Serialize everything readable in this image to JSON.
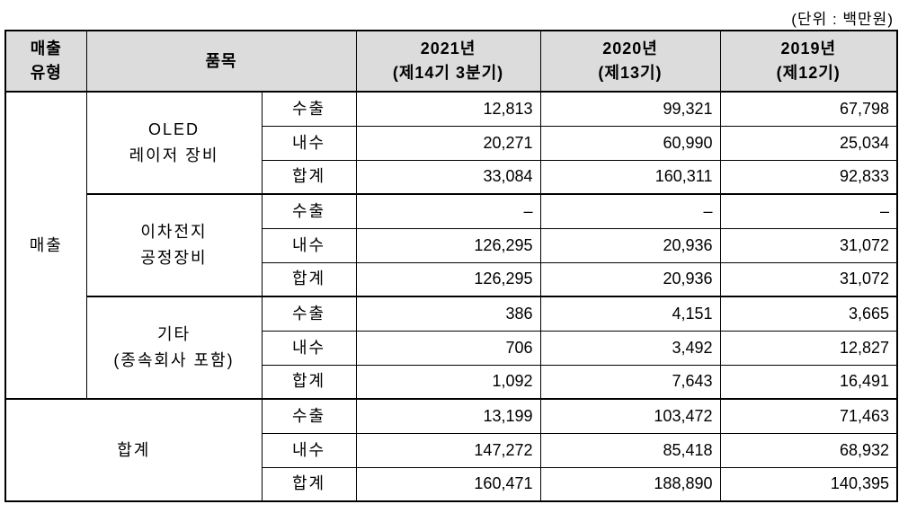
{
  "unit_label": "(단위 : 백만원)",
  "colors": {
    "header_bg": "#dcdcdc",
    "border": "#000000",
    "text": "#000000"
  },
  "table": {
    "headers": {
      "sales_type": "매출\n유형",
      "item": "품목",
      "y2021": "2021년\n(제14기 3분기)",
      "y2020": "2020년\n(제13기)",
      "y2019": "2019년\n(제12기)"
    },
    "sections": [
      {
        "type_label": "매출",
        "groups": [
          {
            "name": "OLED\n레이저 장비",
            "rows": [
              {
                "channel": "수출",
                "v2021": "12,813",
                "v2020": "99,321",
                "v2019": "67,798"
              },
              {
                "channel": "내수",
                "v2021": "20,271",
                "v2020": "60,990",
                "v2019": "25,034"
              },
              {
                "channel": "합계",
                "v2021": "33,084",
                "v2020": "160,311",
                "v2019": "92,833"
              }
            ]
          },
          {
            "name": "이차전지\n공정장비",
            "rows": [
              {
                "channel": "수출",
                "v2021": "–",
                "v2020": "–",
                "v2019": "–"
              },
              {
                "channel": "내수",
                "v2021": "126,295",
                "v2020": "20,936",
                "v2019": "31,072"
              },
              {
                "channel": "합계",
                "v2021": "126,295",
                "v2020": "20,936",
                "v2019": "31,072"
              }
            ]
          },
          {
            "name": "기타\n(종속회사 포함)",
            "rows": [
              {
                "channel": "수출",
                "v2021": "386",
                "v2020": "4,151",
                "v2019": "3,665"
              },
              {
                "channel": "내수",
                "v2021": "706",
                "v2020": "3,492",
                "v2019": "12,827"
              },
              {
                "channel": "합계",
                "v2021": "1,092",
                "v2020": "7,643",
                "v2019": "16,491"
              }
            ]
          }
        ]
      },
      {
        "total_label": "합계",
        "rows": [
          {
            "channel": "수출",
            "v2021": "13,199",
            "v2020": "103,472",
            "v2019": "71,463"
          },
          {
            "channel": "내수",
            "v2021": "147,272",
            "v2020": "85,418",
            "v2019": "68,932"
          },
          {
            "channel": "합계",
            "v2021": "160,471",
            "v2020": "188,890",
            "v2019": "140,395"
          }
        ]
      }
    ]
  }
}
